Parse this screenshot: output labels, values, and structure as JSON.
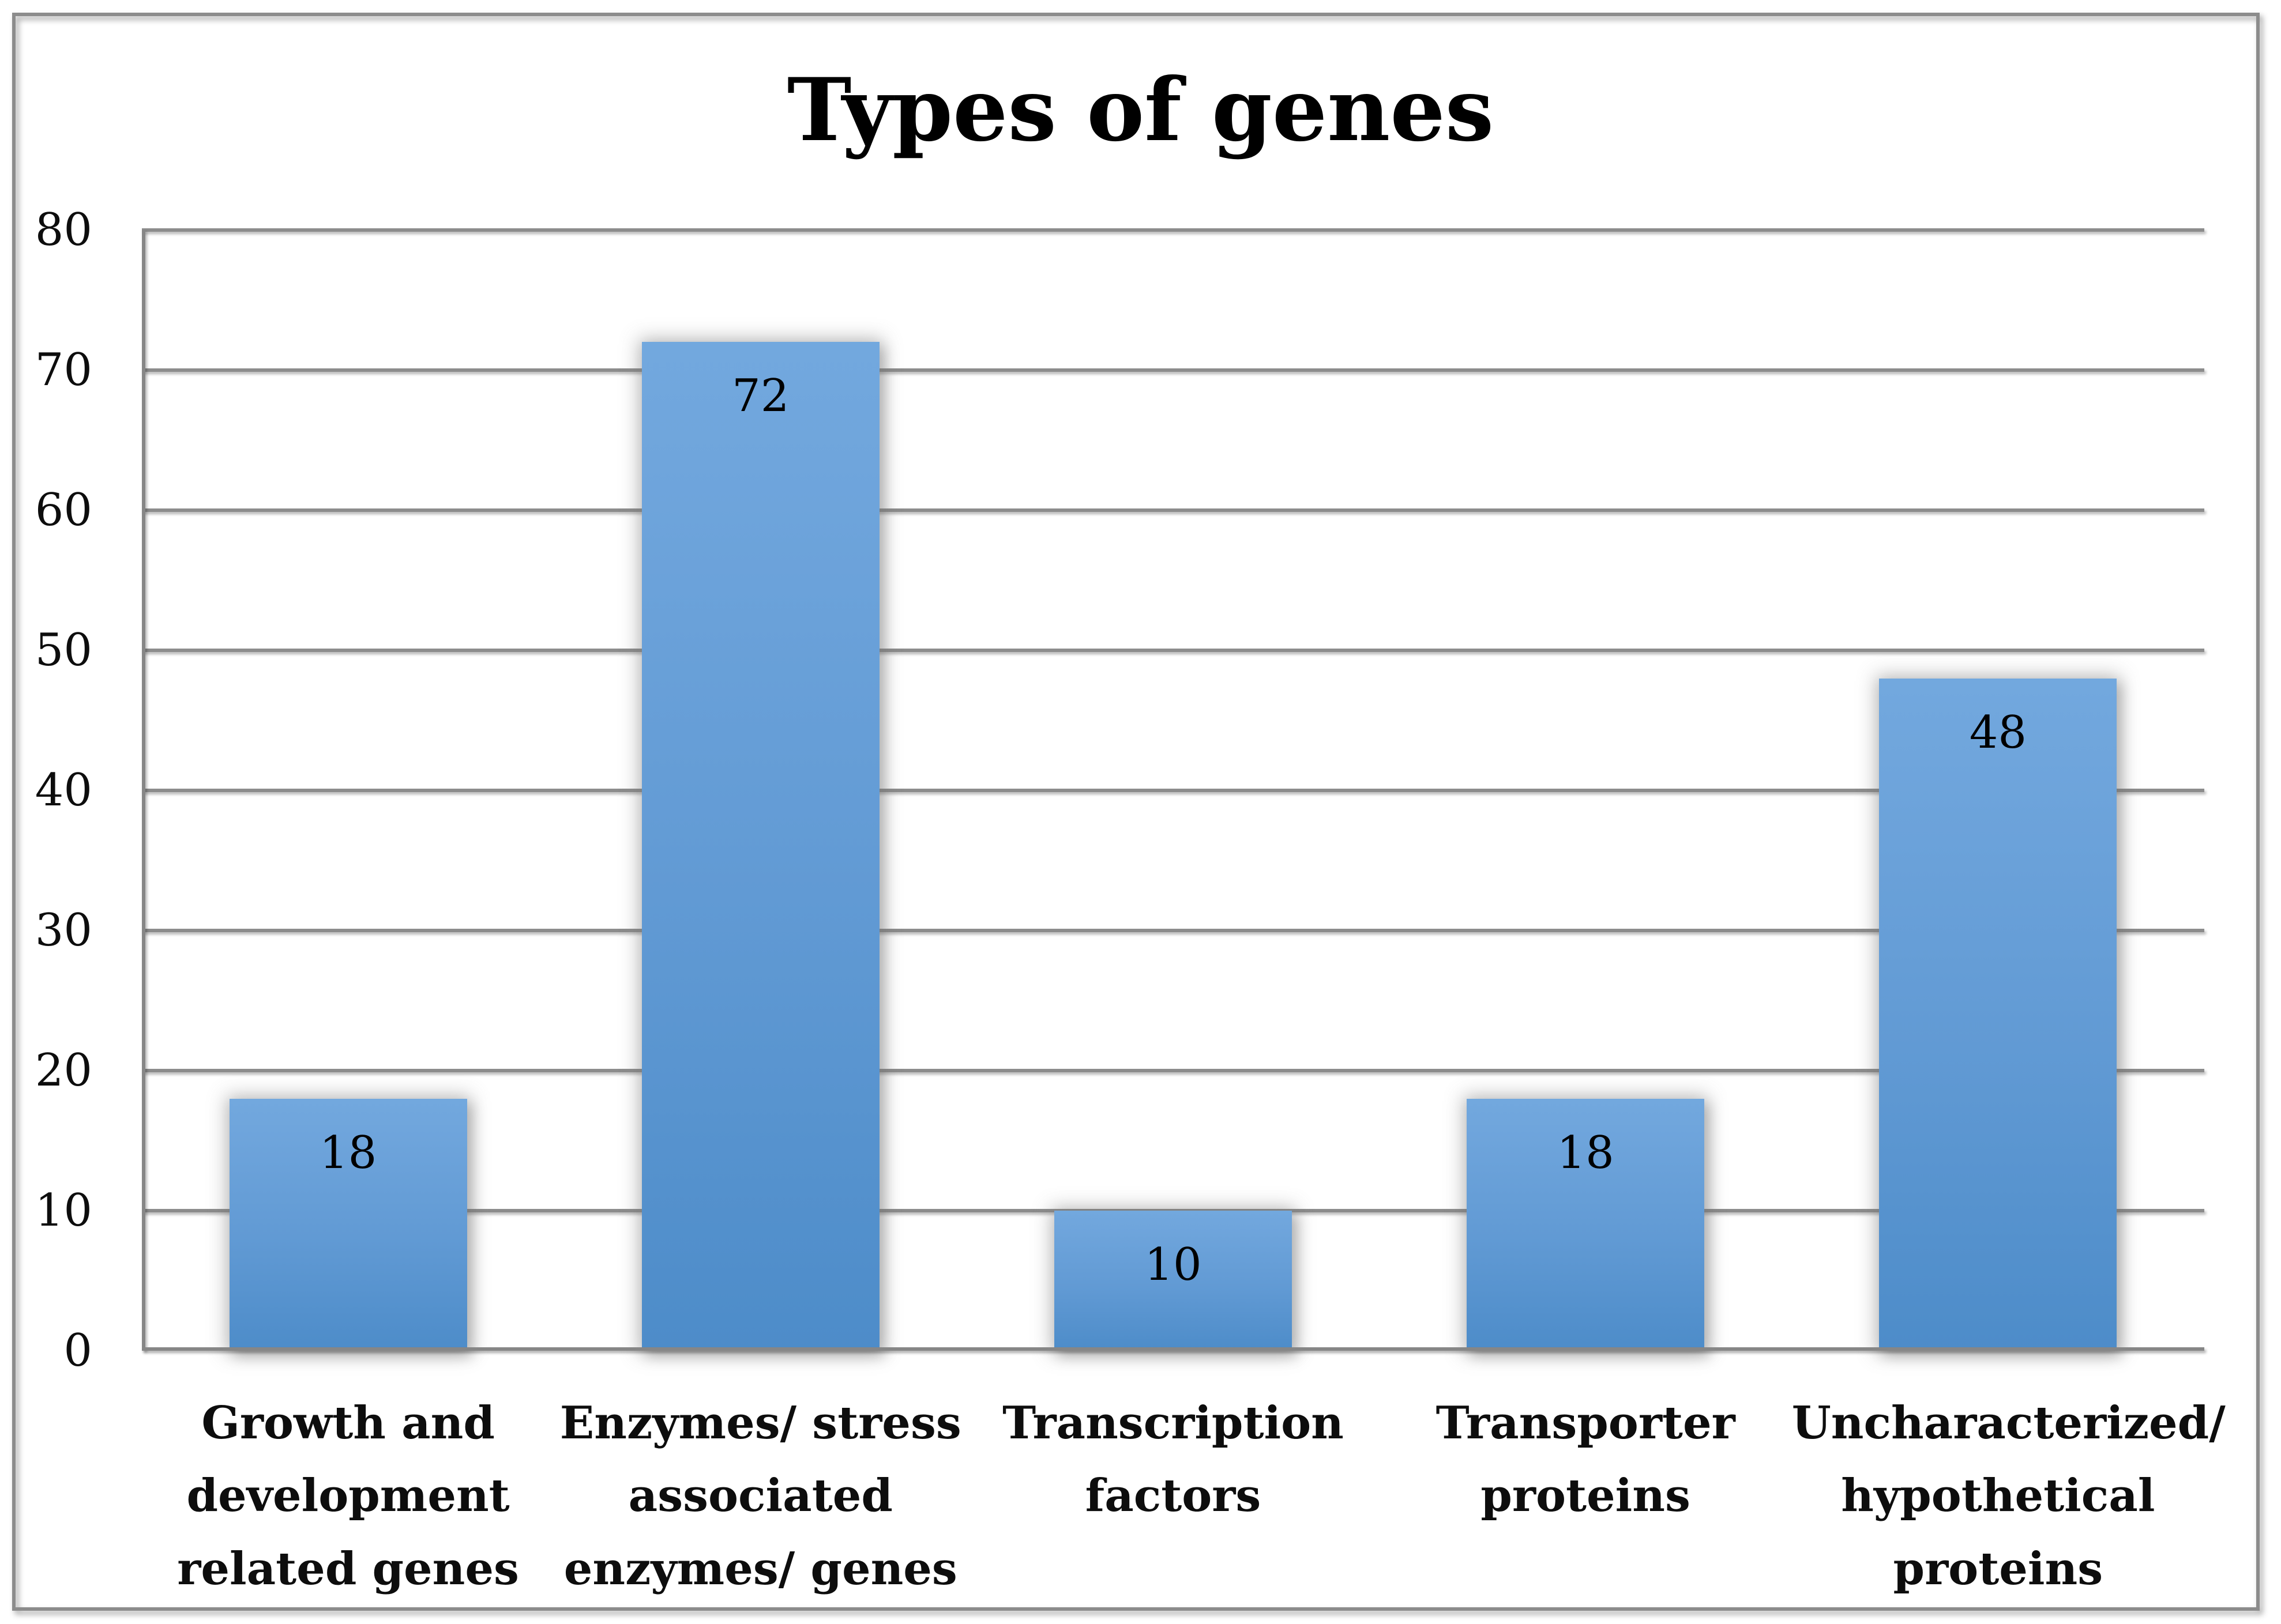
{
  "title": "Types of genes",
  "chart_data": {
    "type": "bar",
    "title": "Types of genes",
    "categories": [
      "Growth and\ndevelopment\nrelated genes",
      "Enzymes/ stress\nassociated\nenzymes/ genes",
      "Transcription\nfactors",
      "Transporter\nproteins",
      "Uncharacterized/\nhypothetical\nproteins"
    ],
    "values": [
      18,
      72,
      10,
      18,
      48
    ],
    "value_labels": [
      "18",
      "72",
      "10",
      "18",
      "48"
    ],
    "xlabel": "",
    "ylabel": "",
    "ylim": [
      0,
      80
    ],
    "ytick_step": 10,
    "yticks": [
      "80",
      "70",
      "60",
      "50",
      "40",
      "30",
      "20",
      "10",
      "0"
    ],
    "grid": "horizontal-gridlines",
    "legend": "none",
    "bar_color_top": "#6FA5DC",
    "bar_color_bottom": "#4D8CC9",
    "gridline_color": "#8C8C8C",
    "frame_border_color": "#8C8C8C",
    "label_color": "#000000"
  }
}
